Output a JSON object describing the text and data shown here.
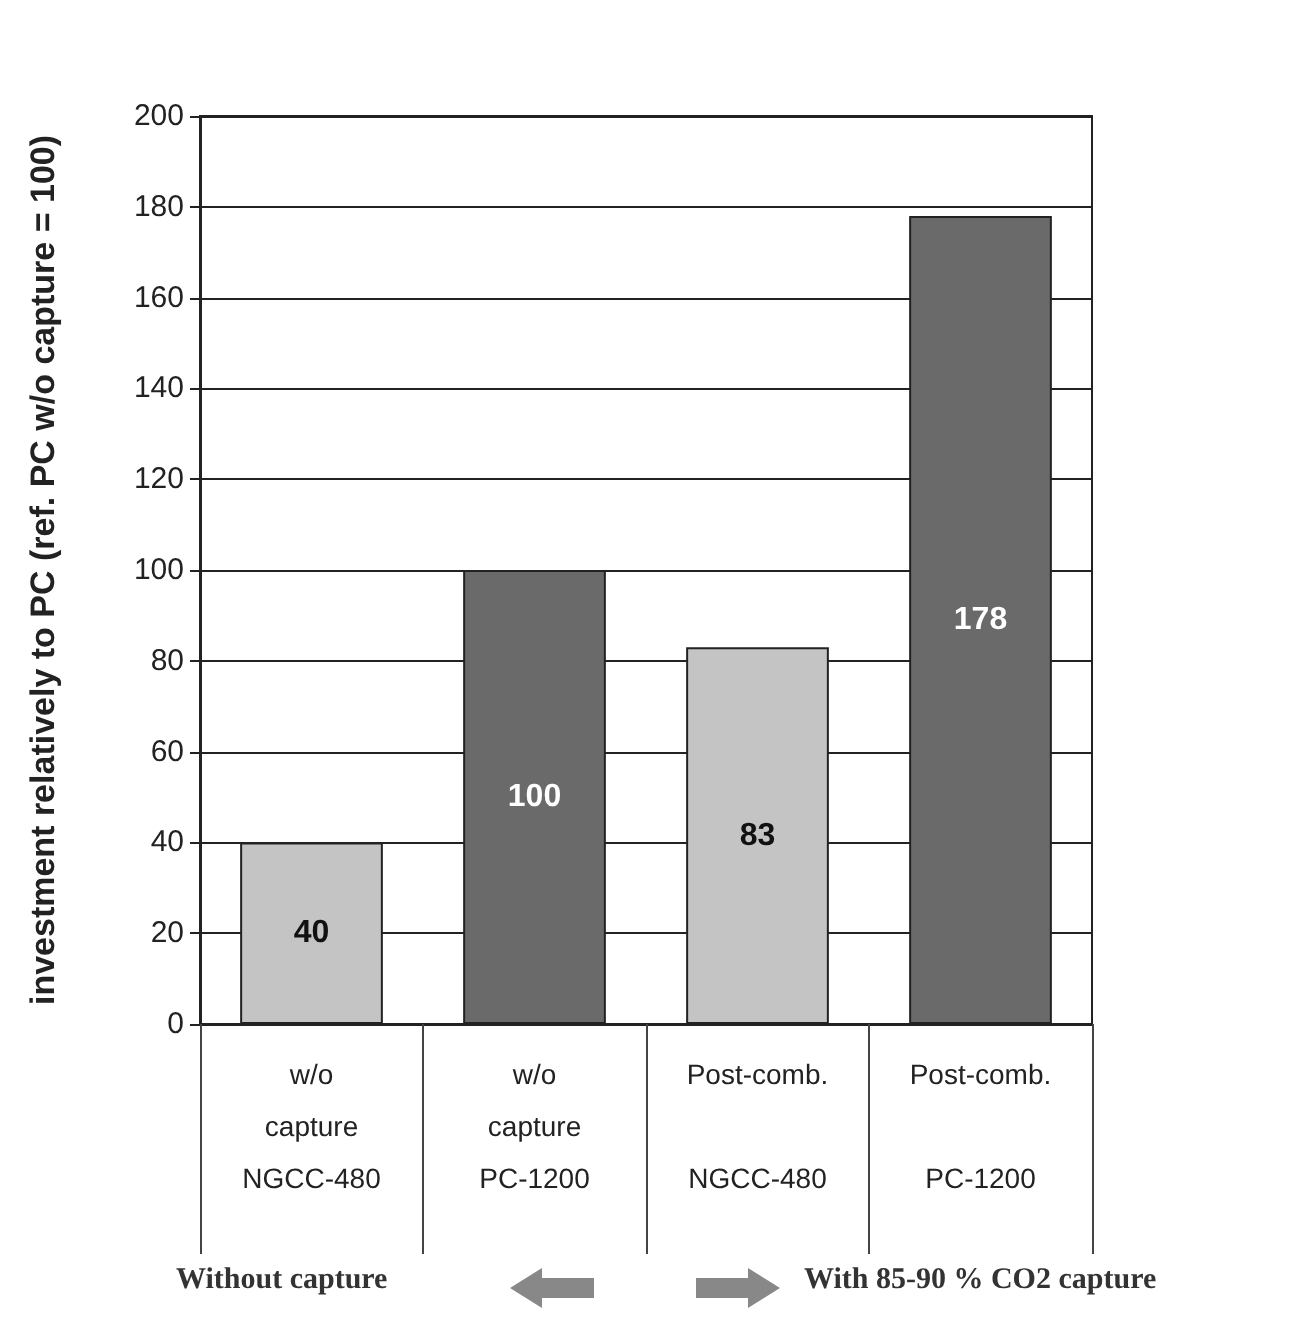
{
  "chart_data": {
    "type": "bar",
    "ylabel": "investment relatively to PC (ref. PC w/o capture = 100)",
    "categories": [
      "w/o\ncapture\nNGCC-480",
      "w/o\ncapture\nPC-1200",
      "Post-comb.\n\nNGCC-480",
      "Post-comb.\n\nPC-1200"
    ],
    "values": [
      40,
      100,
      83,
      178
    ],
    "colors": [
      "#c4c4c4",
      "#6a6a6a",
      "#c4c4c4",
      "#6a6a6a"
    ],
    "ylim": [
      0,
      200
    ],
    "yticks": [
      0,
      20,
      40,
      60,
      80,
      100,
      120,
      140,
      160,
      180,
      200
    ],
    "grid": "y",
    "data_labels": true,
    "annotations": [
      "Without capture",
      "With 85-90 % CO2 capture"
    ]
  }
}
